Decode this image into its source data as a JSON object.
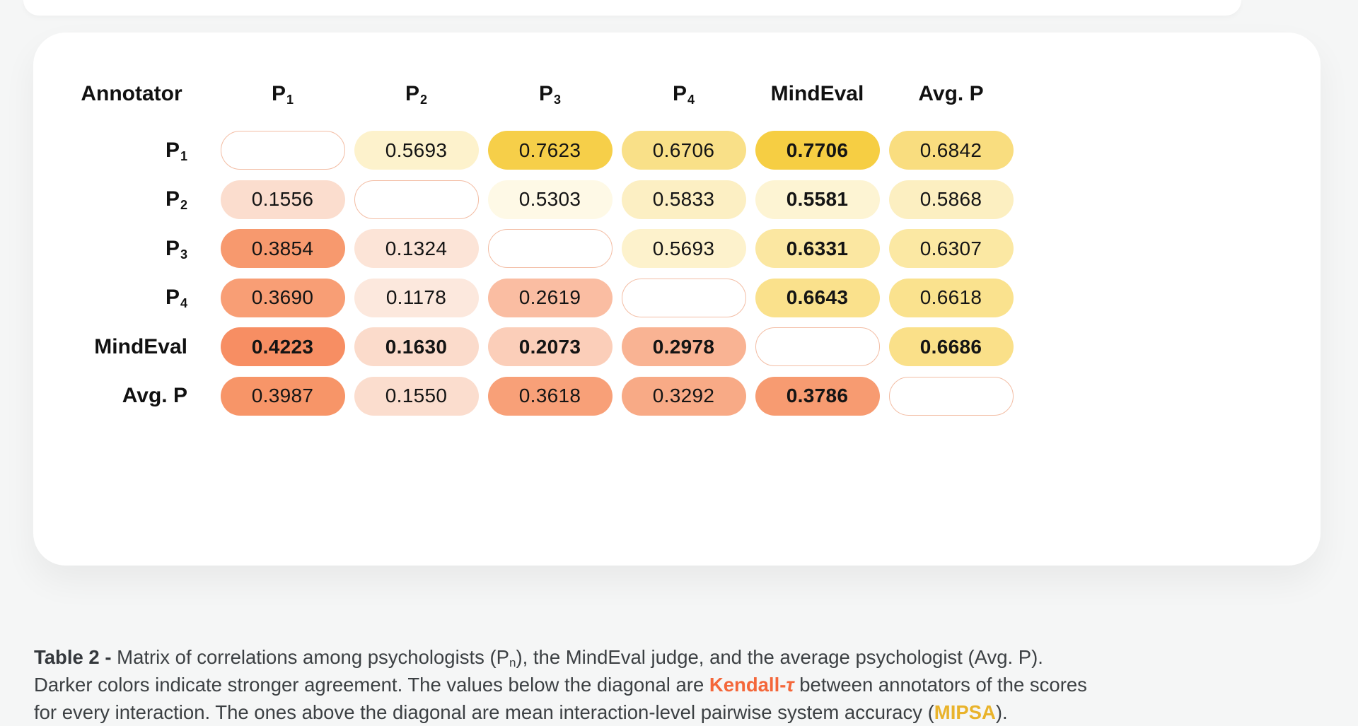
{
  "page": {
    "background_color": "#f5f6f6",
    "card_color": "#ffffff",
    "diagonal_border_color": "#f3bda4",
    "kendall_accent_color": "#f4673a",
    "mipsa_accent_color": "#e9b32b",
    "caption_text_color": "#3c4043"
  },
  "matrix": {
    "column_headers": [
      {
        "text": "Annotator",
        "sub": ""
      },
      {
        "text": "P",
        "sub": "1"
      },
      {
        "text": "P",
        "sub": "2"
      },
      {
        "text": "P",
        "sub": "3"
      },
      {
        "text": "P",
        "sub": "4"
      },
      {
        "text": "MindEval",
        "sub": ""
      },
      {
        "text": "Avg. P",
        "sub": ""
      }
    ],
    "rows": [
      {
        "label": {
          "text": "P",
          "sub": "1"
        },
        "cells": [
          {
            "type": "diagonal"
          },
          {
            "value": "0.5693",
            "bg": "#FDF2CC",
            "bold": false
          },
          {
            "value": "0.7623",
            "bg": "#F6CF49",
            "bold": false
          },
          {
            "value": "0.6706",
            "bg": "#F9E088",
            "bold": false
          },
          {
            "value": "0.7706",
            "bg": "#F6CE43",
            "bold": true
          },
          {
            "value": "0.6842",
            "bg": "#F9DD7F",
            "bold": false
          }
        ]
      },
      {
        "label": {
          "text": "P",
          "sub": "2"
        },
        "cells": [
          {
            "value": "0.1556",
            "bg": "#FBDDCE",
            "bold": false
          },
          {
            "type": "diagonal"
          },
          {
            "value": "0.5303",
            "bg": "#FEF9E6",
            "bold": false
          },
          {
            "value": "0.5833",
            "bg": "#FCEFC3",
            "bold": false
          },
          {
            "value": "0.5581",
            "bg": "#FDF4D3",
            "bold": true
          },
          {
            "value": "0.5868",
            "bg": "#FCEFC1",
            "bold": false
          }
        ]
      },
      {
        "label": {
          "text": "P",
          "sub": "3"
        },
        "cells": [
          {
            "value": "0.3854",
            "bg": "#F7996E",
            "bold": false
          },
          {
            "value": "0.1324",
            "bg": "#FCE4D7",
            "bold": false
          },
          {
            "type": "diagonal"
          },
          {
            "value": "0.5693",
            "bg": "#FDF2CC",
            "bold": false
          },
          {
            "value": "0.6331",
            "bg": "#FBE7A1",
            "bold": true
          },
          {
            "value": "0.6307",
            "bg": "#FBE8A3",
            "bold": false
          }
        ]
      },
      {
        "label": {
          "text": "P",
          "sub": "4"
        },
        "cells": [
          {
            "value": "0.3690",
            "bg": "#F89E75",
            "bold": false
          },
          {
            "value": "0.1178",
            "bg": "#FCE8DD",
            "bold": false
          },
          {
            "value": "0.2619",
            "bg": "#FABDA2",
            "bold": false
          },
          {
            "type": "diagonal"
          },
          {
            "value": "0.6643",
            "bg": "#FAE18C",
            "bold": true
          },
          {
            "value": "0.6618",
            "bg": "#FAE28E",
            "bold": false
          }
        ]
      },
      {
        "label": {
          "text": "MindEval",
          "sub": ""
        },
        "cells": [
          {
            "value": "0.4223",
            "bg": "#F78E63",
            "bold": true
          },
          {
            "value": "0.1630",
            "bg": "#FBDBCB",
            "bold": true
          },
          {
            "value": "0.2073",
            "bg": "#FBCEB9",
            "bold": true
          },
          {
            "value": "0.2978",
            "bg": "#F9B393",
            "bold": true
          },
          {
            "type": "diagonal"
          },
          {
            "value": "0.6686",
            "bg": "#FAE089",
            "bold": true
          }
        ]
      },
      {
        "label": {
          "text": "Avg. P",
          "sub": ""
        },
        "cells": [
          {
            "value": "0.3987",
            "bg": "#F79568",
            "bold": false
          },
          {
            "value": "0.1550",
            "bg": "#FBDDCE",
            "bold": false
          },
          {
            "value": "0.3618",
            "bg": "#F8A078",
            "bold": false
          },
          {
            "value": "0.3292",
            "bg": "#F8AA86",
            "bold": false
          },
          {
            "value": "0.3786",
            "bg": "#F79B71",
            "bold": true
          },
          {
            "type": "diagonal"
          }
        ]
      }
    ]
  },
  "caption": {
    "lines": [
      {
        "segments": [
          {
            "text": "Table 2 - ",
            "style": "bold"
          },
          {
            "text": "Matrix of correlations among psychologists (P",
            "style": "normal"
          },
          {
            "text": "n",
            "style": "sub"
          },
          {
            "text": "), the MindEval judge, and the average psychologist (Avg. P).",
            "style": "normal"
          }
        ]
      },
      {
        "segments": [
          {
            "text": "Darker colors indicate stronger agreement. The values below the diagonal are ",
            "style": "normal"
          },
          {
            "text": "Kendall-",
            "style": "kendall"
          },
          {
            "text": "τ",
            "style": "kendall-tau"
          },
          {
            "text": " between annotators of the scores",
            "style": "normal"
          }
        ]
      },
      {
        "segments": [
          {
            "text": "for every interaction. The ones above the diagonal are mean interaction-level pairwise system accuracy (",
            "style": "normal"
          },
          {
            "text": "MIPSA",
            "style": "mipsa"
          },
          {
            "text": ").",
            "style": "normal"
          }
        ]
      }
    ]
  },
  "chart_data": {
    "type": "heatmap",
    "title": "Table 2 - Matrix of correlations among psychologists (Pn), the MindEval judge, and the average psychologist (Avg. P)",
    "row_labels": [
      "P1",
      "P2",
      "P3",
      "P4",
      "MindEval",
      "Avg. P"
    ],
    "col_labels": [
      "P1",
      "P2",
      "P3",
      "P4",
      "MindEval",
      "Avg. P"
    ],
    "values": [
      [
        null,
        0.5693,
        0.7623,
        0.6706,
        0.7706,
        0.6842
      ],
      [
        0.1556,
        null,
        0.5303,
        0.5833,
        0.5581,
        0.5868
      ],
      [
        0.3854,
        0.1324,
        null,
        0.5693,
        0.6331,
        0.6307
      ],
      [
        0.369,
        0.1178,
        0.2619,
        null,
        0.6643,
        0.6618
      ],
      [
        0.4223,
        0.163,
        0.2073,
        0.2978,
        null,
        0.6686
      ],
      [
        0.3987,
        0.155,
        0.3618,
        0.3292,
        0.3786,
        null
      ]
    ],
    "below_diagonal_metric": "Kendall-τ between annotators of the scores for every interaction",
    "above_diagonal_metric": "mean interaction-level pairwise system accuracy (MIPSA)",
    "legend_position": "none",
    "grid": false,
    "colormap": {
      "kendall_low": "#FCE8DD",
      "kendall_high": "#F78E63",
      "mipsa_low": "#FEF9E6",
      "mipsa_high": "#F6CE43"
    }
  }
}
